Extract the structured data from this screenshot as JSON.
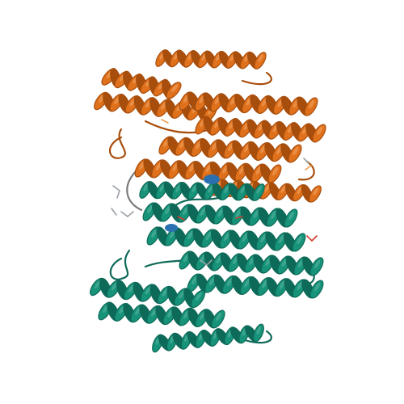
{
  "image": {
    "kind": "protein-cartoon-render",
    "background": "#ffffff"
  },
  "chains": [
    {
      "name": "chain-a-orange",
      "colors": {
        "base": "#e0711c",
        "dark": "#a84e0d",
        "light": "#f0a868"
      }
    },
    {
      "name": "chain-b-teal",
      "colors": {
        "base": "#17937a",
        "dark": "#0e6a58",
        "light": "#5cb7a3"
      }
    }
  ],
  "accent_colors": {
    "interface_blue": "#2a6fb0",
    "ligand_red": "#d23a2a",
    "ligand_grey": "#9aa0a6",
    "ligand_orange": "#e8a050"
  }
}
